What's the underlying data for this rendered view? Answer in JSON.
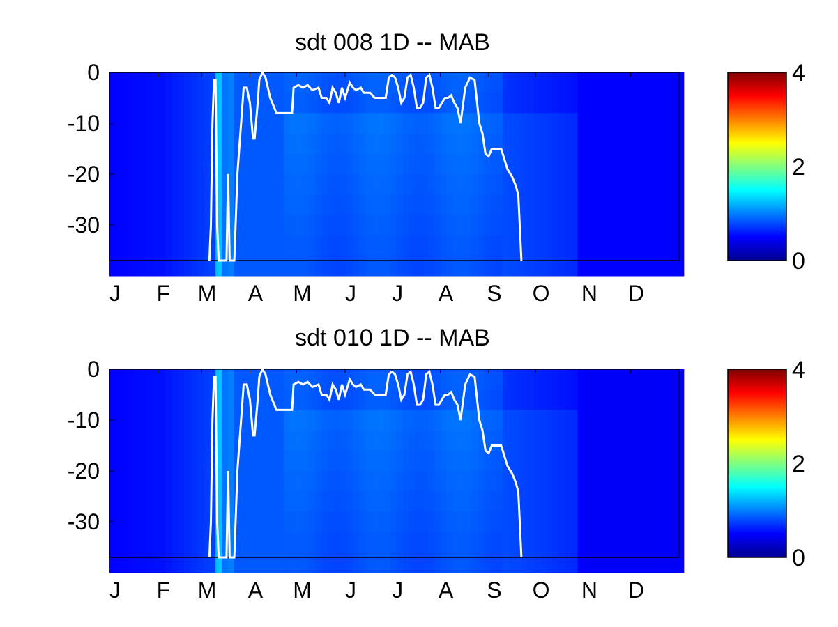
{
  "chart_data": [
    {
      "type": "heatmap",
      "title": "sdt  008 1D   -- MAB",
      "xlabel": "",
      "ylabel": "",
      "x_tick_labels": [
        "J",
        "F",
        "M",
        "A",
        "M",
        "J",
        "J",
        "A",
        "S",
        "O",
        "N",
        "D"
      ],
      "y_tick_labels": [
        "0",
        "-10",
        "-20",
        "-30"
      ],
      "y_ticks": [
        0,
        -10,
        -20,
        -30
      ],
      "xlim": [
        0,
        365
      ],
      "ylim": [
        -37,
        0
      ],
      "clim": [
        0,
        4
      ],
      "colorbar_tick_labels": [
        "0",
        "2",
        "4"
      ],
      "colorbar_ticks": [
        0,
        2,
        4
      ],
      "colormap": "jet",
      "line_color": "#ffffff",
      "line_series": {
        "x": [
          0,
          59,
          64,
          65,
          66,
          67,
          68,
          69,
          70,
          73,
          75,
          76,
          77,
          80,
          82,
          86,
          88,
          90,
          92,
          93,
          95,
          96,
          98,
          100,
          103,
          107,
          110,
          117,
          118,
          121,
          124,
          127,
          130,
          134,
          136,
          139,
          141,
          143,
          145,
          147,
          149,
          151,
          154,
          156,
          158,
          161,
          163,
          167,
          170,
          173,
          175,
          177,
          179,
          181,
          183,
          185,
          187,
          189,
          191,
          193,
          195,
          197,
          199,
          201,
          203,
          205,
          207,
          209,
          211,
          213,
          215,
          217,
          219,
          221,
          223,
          225,
          228,
          231,
          234,
          237,
          239,
          241,
          243,
          245,
          247,
          249,
          251,
          252,
          253,
          255,
          256,
          258,
          260,
          262,
          264,
          266,
          268,
          269,
          270,
          272,
          274,
          277,
          280,
          284,
          286,
          288,
          290,
          292,
          294,
          296,
          298,
          299,
          300,
          300.5,
          301,
          365
        ],
        "y": [
          null,
          null,
          -37,
          -30,
          -10,
          -1.5,
          -1.5,
          -30,
          -37,
          -37,
          -37,
          -20,
          -37,
          -37,
          -20,
          -3,
          -3,
          -6,
          -13,
          -13,
          -6,
          -1.5,
          0,
          -1,
          -5,
          -8,
          -8,
          -8,
          -3,
          -2.5,
          -3,
          -2.5,
          -3.5,
          -3,
          -5,
          -5,
          -6,
          -3,
          -4,
          -6,
          -3,
          -5,
          -2,
          -3,
          -3.5,
          -3,
          -4,
          -4,
          -5,
          -5,
          -5,
          -5,
          -1,
          -0.5,
          -1,
          -3,
          -6,
          -5,
          -1,
          -0.5,
          -3,
          -7,
          -7,
          -6,
          -1,
          -0.5,
          -3,
          -7,
          -7,
          -6,
          -5,
          -5,
          -4.5,
          -6,
          -7,
          -10,
          -3,
          -1,
          -1.5,
          -10,
          -12,
          -16,
          -16.5,
          -15,
          -15,
          -15,
          -15,
          -16,
          -17,
          -19,
          -19.5,
          -20.5,
          -22,
          -24,
          -37,
          null,
          null,
          null,
          null,
          null,
          null,
          null,
          null,
          null,
          null,
          null,
          null,
          null,
          null,
          null,
          null,
          null,
          null,
          null,
          null,
          null
        ],
        "note": ""
      }
    },
    {
      "type": "heatmap",
      "title": "sdt  010 1D   -- MAB",
      "xlabel": "",
      "ylabel": "",
      "x_tick_labels": [
        "J",
        "F",
        "M",
        "A",
        "M",
        "J",
        "J",
        "A",
        "S",
        "O",
        "N",
        "D"
      ],
      "y_tick_labels": [
        "0",
        "-10",
        "-20",
        "-30"
      ],
      "y_ticks": [
        0,
        -10,
        -20,
        -30
      ],
      "xlim": [
        0,
        365
      ],
      "ylim": [
        -37,
        0
      ],
      "clim": [
        0,
        4
      ],
      "colorbar_tick_labels": [
        "0",
        "2",
        "4"
      ],
      "colorbar_ticks": [
        0,
        2,
        4
      ],
      "colormap": "jet",
      "line_color": "#ffffff"
    }
  ]
}
